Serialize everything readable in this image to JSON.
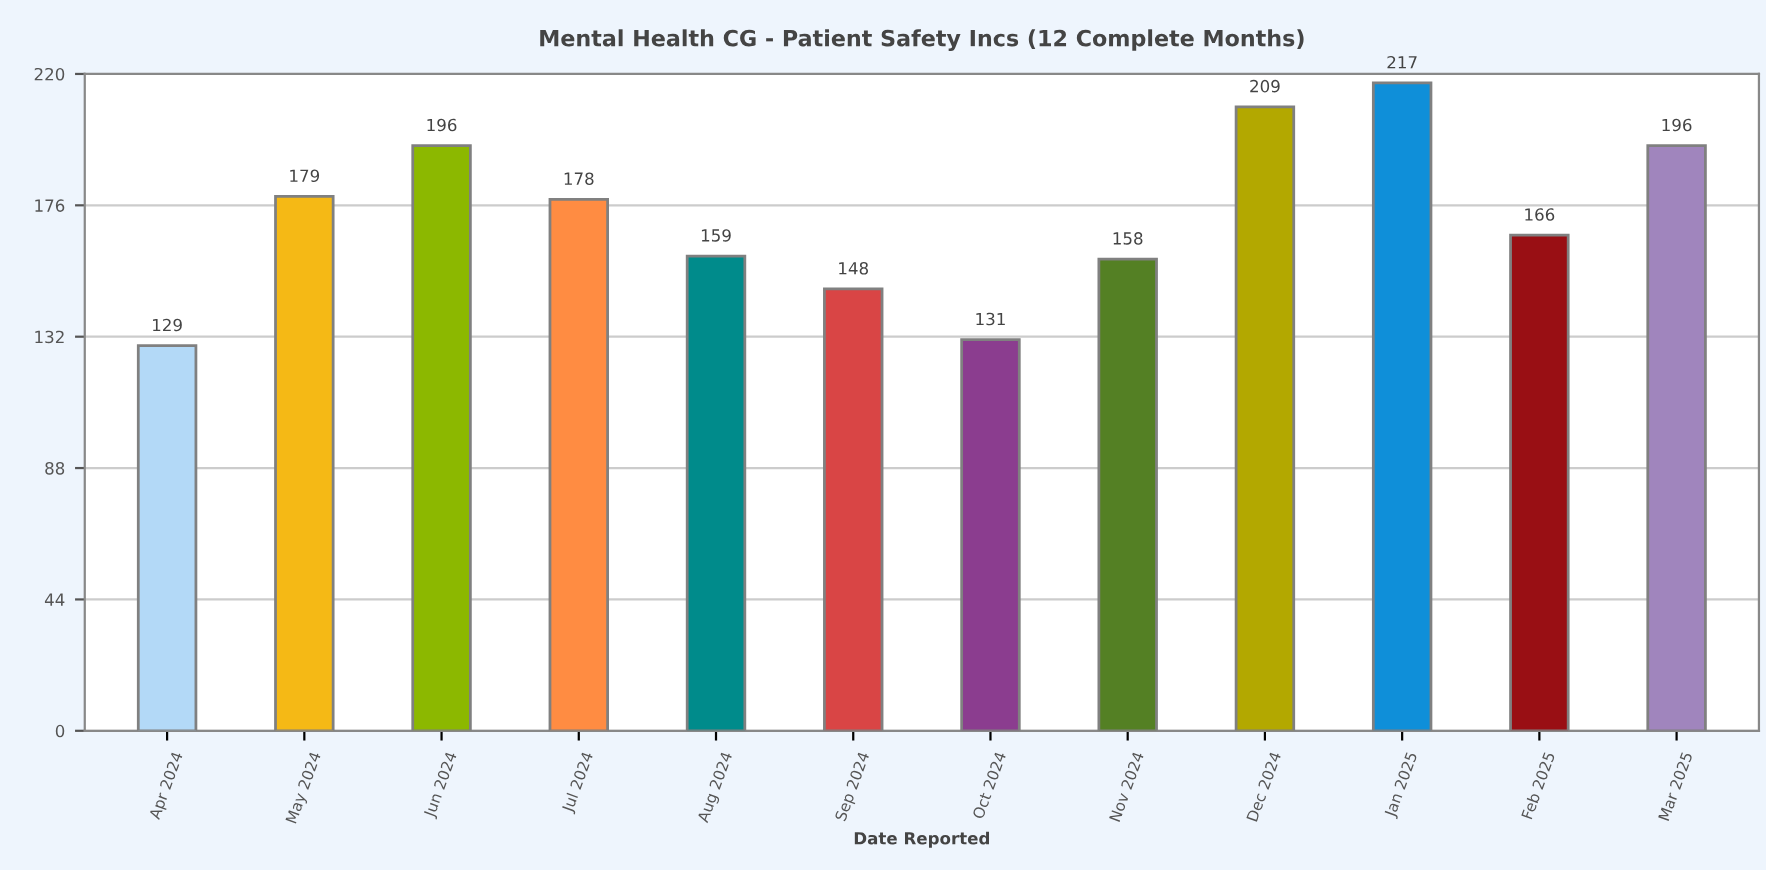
{
  "chart_data": {
    "type": "bar",
    "title": "Mental Health CG - Patient Safety Incs (12 Complete Months)",
    "xlabel": "Date Reported",
    "categories": [
      "Apr 2024",
      "May 2024",
      "Jun 2024",
      "Jul 2024",
      "Aug 2024",
      "Sep 2024",
      "Oct 2024",
      "Nov 2024",
      "Dec 2024",
      "Jan 2025",
      "Feb 2025",
      "Mar 2025"
    ],
    "values": [
      129,
      179,
      196,
      178,
      159,
      148,
      131,
      158,
      209,
      217,
      166,
      196
    ],
    "colors": [
      "#b3d9f7",
      "#f5b915",
      "#8cb800",
      "#ff8c42",
      "#008b8b",
      "#d94545",
      "#8b3d8f",
      "#548024",
      "#b3a800",
      "#0f8fd9",
      "#990f14",
      "#a085bd"
    ],
    "data_labels": true,
    "ylim": [
      0,
      220
    ],
    "yticks": [
      0,
      44,
      88,
      132,
      176,
      220
    ],
    "grid": "y"
  }
}
